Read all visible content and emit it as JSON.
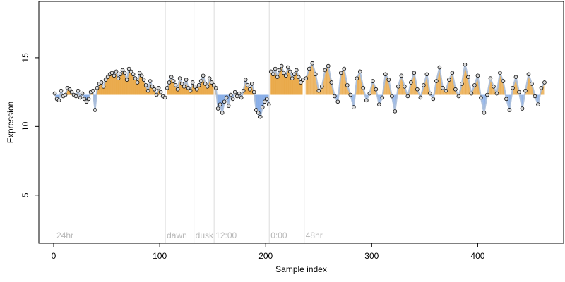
{
  "chart_data": {
    "type": "scatter",
    "title": "",
    "xlabel": "Sample index",
    "ylabel": "Expression",
    "xlim": [
      -14,
      481
    ],
    "ylim": [
      1.5,
      19.1
    ],
    "x_ticks": [
      0,
      100,
      200,
      300,
      400
    ],
    "y_ticks": [
      5,
      10,
      15
    ],
    "baseline": 12.3,
    "colors": {
      "above": "#e8a33c",
      "below": "#7fa8e6",
      "fit": "#a9bcd9",
      "point_fill": "#d9d9d9",
      "point_edge": "#000000",
      "segment_line": "#dcdcdc",
      "segment_label": "#b8b8b8"
    },
    "segments": [
      {
        "label": "24hr",
        "start": 2
      },
      {
        "label": "dawn",
        "start": 106
      },
      {
        "label": "dusk",
        "start": 133
      },
      {
        "label": "12:00",
        "start": 152
      },
      {
        "label": "0:00",
        "start": 204
      },
      {
        "label": "48hr",
        "start": 237
      }
    ],
    "series": [
      {
        "x": [
          1,
          3,
          5,
          7,
          9,
          11,
          13,
          15,
          17,
          19,
          21,
          23,
          25,
          27,
          29,
          31,
          33,
          35,
          37,
          39,
          41,
          43,
          45,
          47,
          49,
          51,
          53,
          55,
          57,
          59,
          61,
          63,
          65,
          67,
          69,
          71,
          73,
          75,
          77,
          79,
          81,
          83,
          85,
          87,
          89,
          91,
          93,
          95,
          97,
          99,
          101,
          103,
          105
        ],
        "y": [
          12.4,
          12.0,
          11.9,
          12.6,
          12.2,
          12.3,
          12.8,
          12.7,
          12.5,
          12.3,
          12.2,
          12.6,
          12.1,
          12.4,
          12.0,
          11.8,
          12.0,
          12.5,
          12.6,
          11.2,
          12.8,
          13.1,
          13.2,
          12.9,
          13.4,
          13.6,
          13.8,
          13.9,
          13.7,
          14.0,
          13.5,
          13.8,
          14.1,
          13.9,
          13.4,
          14.2,
          14.0,
          13.8,
          13.5,
          13.2,
          13.9,
          13.7,
          13.4,
          13.0,
          12.6,
          13.3,
          12.9,
          12.7,
          12.3,
          12.8,
          12.5,
          12.2,
          12.1
        ]
      },
      {
        "x": [
          107,
          109,
          111,
          113,
          115,
          117,
          119,
          121,
          123,
          125,
          127,
          129,
          131,
          133,
          135,
          137,
          139,
          141,
          143,
          145,
          147,
          149,
          151
        ],
        "y": [
          12.8,
          13.2,
          13.6,
          13.3,
          13.0,
          12.7,
          13.5,
          13.1,
          12.9,
          13.4,
          12.8,
          12.6,
          13.2,
          12.9,
          12.7,
          13.0,
          13.3,
          13.7,
          13.1,
          12.9,
          13.5,
          13.2,
          13.0
        ]
      },
      {
        "x": [
          153,
          155,
          157,
          159,
          161,
          163,
          165,
          167,
          169,
          171,
          173,
          175,
          177,
          179,
          181,
          183,
          185,
          187,
          189,
          191,
          193,
          195,
          197,
          199,
          201,
          203
        ],
        "y": [
          12.8,
          11.3,
          11.6,
          11.0,
          11.8,
          12.1,
          11.5,
          12.3,
          12.0,
          12.5,
          12.2,
          12.4,
          12.1,
          12.6,
          13.4,
          13.0,
          12.7,
          13.1,
          12.5,
          11.2,
          11.0,
          10.7,
          11.4,
          11.8,
          12.0,
          11.6
        ]
      },
      {
        "x": [
          205,
          207,
          209,
          211,
          213,
          215,
          217,
          219,
          221,
          223,
          225,
          227,
          229,
          231,
          233,
          235
        ],
        "y": [
          14.0,
          13.8,
          14.2,
          13.6,
          14.1,
          14.4,
          13.9,
          13.7,
          14.3,
          14.0,
          13.5,
          13.8,
          14.1,
          13.6,
          13.2,
          13.4
        ]
      },
      {
        "x": [
          238,
          241,
          244,
          247,
          250,
          253,
          256,
          259,
          262,
          265,
          268,
          271,
          274,
          277,
          280,
          283,
          286,
          289,
          292,
          295,
          298,
          301,
          304,
          307,
          310,
          313,
          316,
          319,
          322,
          325,
          328,
          331,
          334,
          337,
          340,
          343,
          346,
          349,
          352,
          355,
          358,
          361,
          364,
          367,
          370,
          373,
          376,
          379,
          382,
          385,
          388,
          391,
          394,
          397,
          400,
          403,
          406,
          409,
          412,
          415,
          418,
          421,
          424,
          427,
          430,
          433,
          436,
          439,
          442,
          445,
          448,
          451,
          454,
          457,
          460,
          463
        ],
        "y": [
          13.5,
          14.2,
          14.6,
          13.8,
          12.6,
          12.9,
          14.1,
          14.4,
          13.2,
          12.2,
          11.8,
          13.9,
          14.2,
          13.0,
          12.3,
          11.4,
          13.5,
          14.0,
          12.8,
          11.9,
          12.4,
          13.3,
          12.7,
          11.6,
          12.1,
          13.8,
          13.4,
          12.2,
          11.1,
          12.9,
          13.7,
          12.9,
          12.2,
          13.2,
          13.9,
          12.7,
          12.1,
          13.0,
          13.8,
          12.4,
          12.0,
          13.3,
          14.3,
          12.8,
          12.6,
          13.4,
          13.9,
          12.7,
          12.2,
          13.1,
          14.5,
          13.6,
          12.4,
          13.0,
          13.7,
          12.1,
          11.0,
          12.3,
          13.5,
          12.9,
          12.4,
          13.9,
          13.3,
          12.0,
          11.2,
          12.8,
          13.6,
          12.5,
          11.3,
          12.6,
          13.8,
          13.1,
          12.2,
          11.6,
          12.8,
          13.2
        ]
      }
    ]
  }
}
